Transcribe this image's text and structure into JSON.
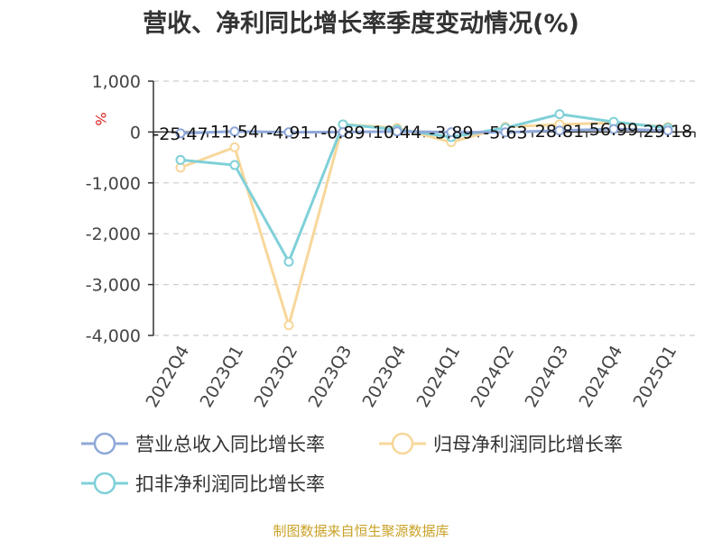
{
  "chart_data": {
    "type": "line",
    "title": "营收、净利同比增长率季度变动情况(%)",
    "ylabel": "%",
    "xlabel": "",
    "categories": [
      "2022Q4",
      "2023Q1",
      "2023Q2",
      "2023Q3",
      "2023Q4",
      "2024Q1",
      "2024Q2",
      "2024Q3",
      "2024Q4",
      "2025Q1"
    ],
    "y_ticks": [
      "1,000",
      "0",
      "-1,000",
      "-2,000",
      "-3,000",
      "-4,000"
    ],
    "ylim": [
      -4000,
      1000
    ],
    "grid": true,
    "legend_position": "bottom",
    "series": [
      {
        "name": "营业总收入同比增长率",
        "color": "#8fa8d8",
        "values": [
          -25.47,
          11.54,
          -4.91,
          -0.89,
          10.44,
          -3.89,
          -5.63,
          28.81,
          56.99,
          29.18
        ],
        "data_labels": [
          "-25.47",
          "11.54",
          "-4.91",
          "-0.89",
          "10.44",
          "-3.89",
          "-5.63",
          "28.81",
          "56.99",
          "29.18"
        ]
      },
      {
        "name": "归母净利润同比增长率",
        "color": "#f7d79a",
        "values": [
          -700,
          -300,
          -3800,
          150,
          80,
          -200,
          100,
          150,
          180,
          100
        ]
      },
      {
        "name": "扣非净利润同比增长率",
        "color": "#7fd0d8",
        "values": [
          -550,
          -650,
          -2550,
          150,
          50,
          -100,
          80,
          350,
          200,
          80
        ]
      }
    ]
  },
  "source_note": "制图数据来自恒生聚源数据库"
}
